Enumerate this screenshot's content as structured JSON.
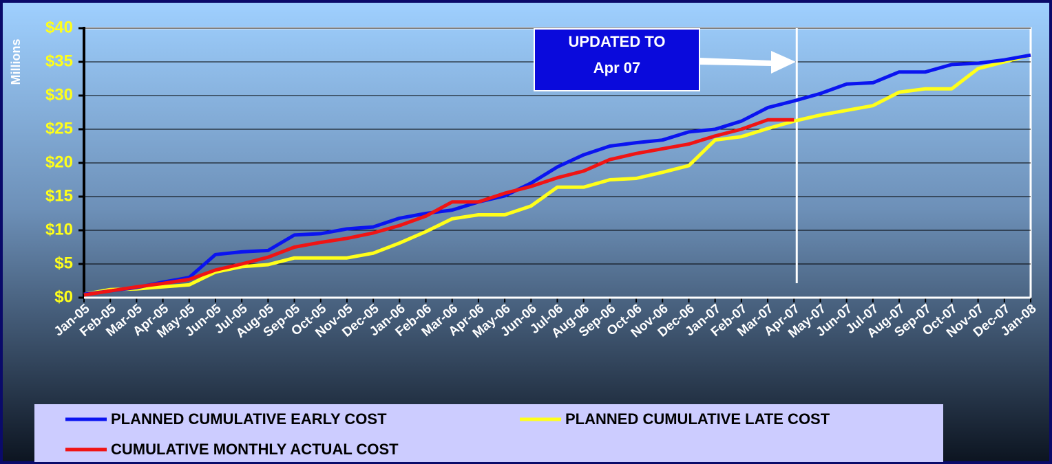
{
  "chart_data": {
    "type": "line",
    "y_axis_label": "Millions",
    "annotation": [
      "UPDATED TO",
      "Apr 07"
    ],
    "categories": [
      "Jan-05",
      "Feb-05",
      "Mar-05",
      "Apr-05",
      "May-05",
      "Jun-05",
      "Jul-05",
      "Aug-05",
      "Sep-05",
      "Oct-05",
      "Nov-05",
      "Dec-05",
      "Jan-06",
      "Feb-06",
      "Mar-06",
      "Apr-06",
      "May-06",
      "Jun-06",
      "Jul-06",
      "Aug-06",
      "Sep-06",
      "Oct-06",
      "Nov-06",
      "Dec-06",
      "Jan-07",
      "Feb-07",
      "Mar-07",
      "Apr-07",
      "May-07",
      "Jun-07",
      "Jul-07",
      "Aug-07",
      "Sep-07",
      "Oct-07",
      "Nov-07",
      "Dec-07",
      "Jan-08"
    ],
    "series": [
      {
        "name": "PLANNED CUMULATIVE EARLY COST",
        "color": "#0a14f0",
        "values": [
          0.5,
          1.0,
          1.5,
          2.3,
          3.0,
          6.4,
          6.8,
          7.0,
          9.3,
          9.5,
          10.2,
          10.5,
          11.8,
          12.5,
          13.0,
          14.2,
          15.1,
          17.0,
          19.4,
          21.2,
          22.5,
          23.0,
          23.4,
          24.6,
          25.0,
          26.2,
          28.2,
          29.2,
          30.3,
          31.7,
          31.9,
          33.5,
          33.5,
          34.6,
          34.8,
          35.3,
          36.0
        ]
      },
      {
        "name": "PLANNED CUMULATIVE LATE COST",
        "color": "#ffff1a",
        "values": [
          0.5,
          1.2,
          1.3,
          1.6,
          1.9,
          3.8,
          4.6,
          4.9,
          5.9,
          5.9,
          5.9,
          6.6,
          8.1,
          9.8,
          11.7,
          12.3,
          12.3,
          13.6,
          16.4,
          16.4,
          17.5,
          17.7,
          18.6,
          19.6,
          23.4,
          23.9,
          25.1,
          26.2,
          27.1,
          27.8,
          28.5,
          30.5,
          31.0,
          31.0,
          34.0,
          35.0,
          36.0
        ]
      },
      {
        "name": "CUMULATIVE MONTHLY ACTUAL COST",
        "color": "#f01414",
        "values": [
          0.4,
          1.0,
          1.6,
          2.1,
          2.7,
          4.1,
          5.0,
          6.0,
          7.5,
          8.2,
          8.8,
          9.6,
          10.7,
          12.1,
          14.2,
          14.2,
          15.5,
          16.5,
          17.8,
          18.8,
          20.5,
          21.4,
          22.1,
          22.8,
          24.0,
          25.0,
          26.4,
          26.4,
          null,
          null,
          null,
          null,
          null,
          null,
          null,
          null,
          null
        ]
      }
    ],
    "ylim": [
      0,
      40
    ],
    "yticks": [
      {
        "value": 0,
        "label": "$0"
      },
      {
        "value": 5,
        "label": "$5"
      },
      {
        "value": 10,
        "label": "$10"
      },
      {
        "value": 15,
        "label": "$15"
      },
      {
        "value": 20,
        "label": "$20"
      },
      {
        "value": 25,
        "label": "$25"
      },
      {
        "value": 30,
        "label": "$30"
      },
      {
        "value": 35,
        "label": "$35"
      },
      {
        "value": 40,
        "label": "$40"
      }
    ],
    "grid": true
  }
}
